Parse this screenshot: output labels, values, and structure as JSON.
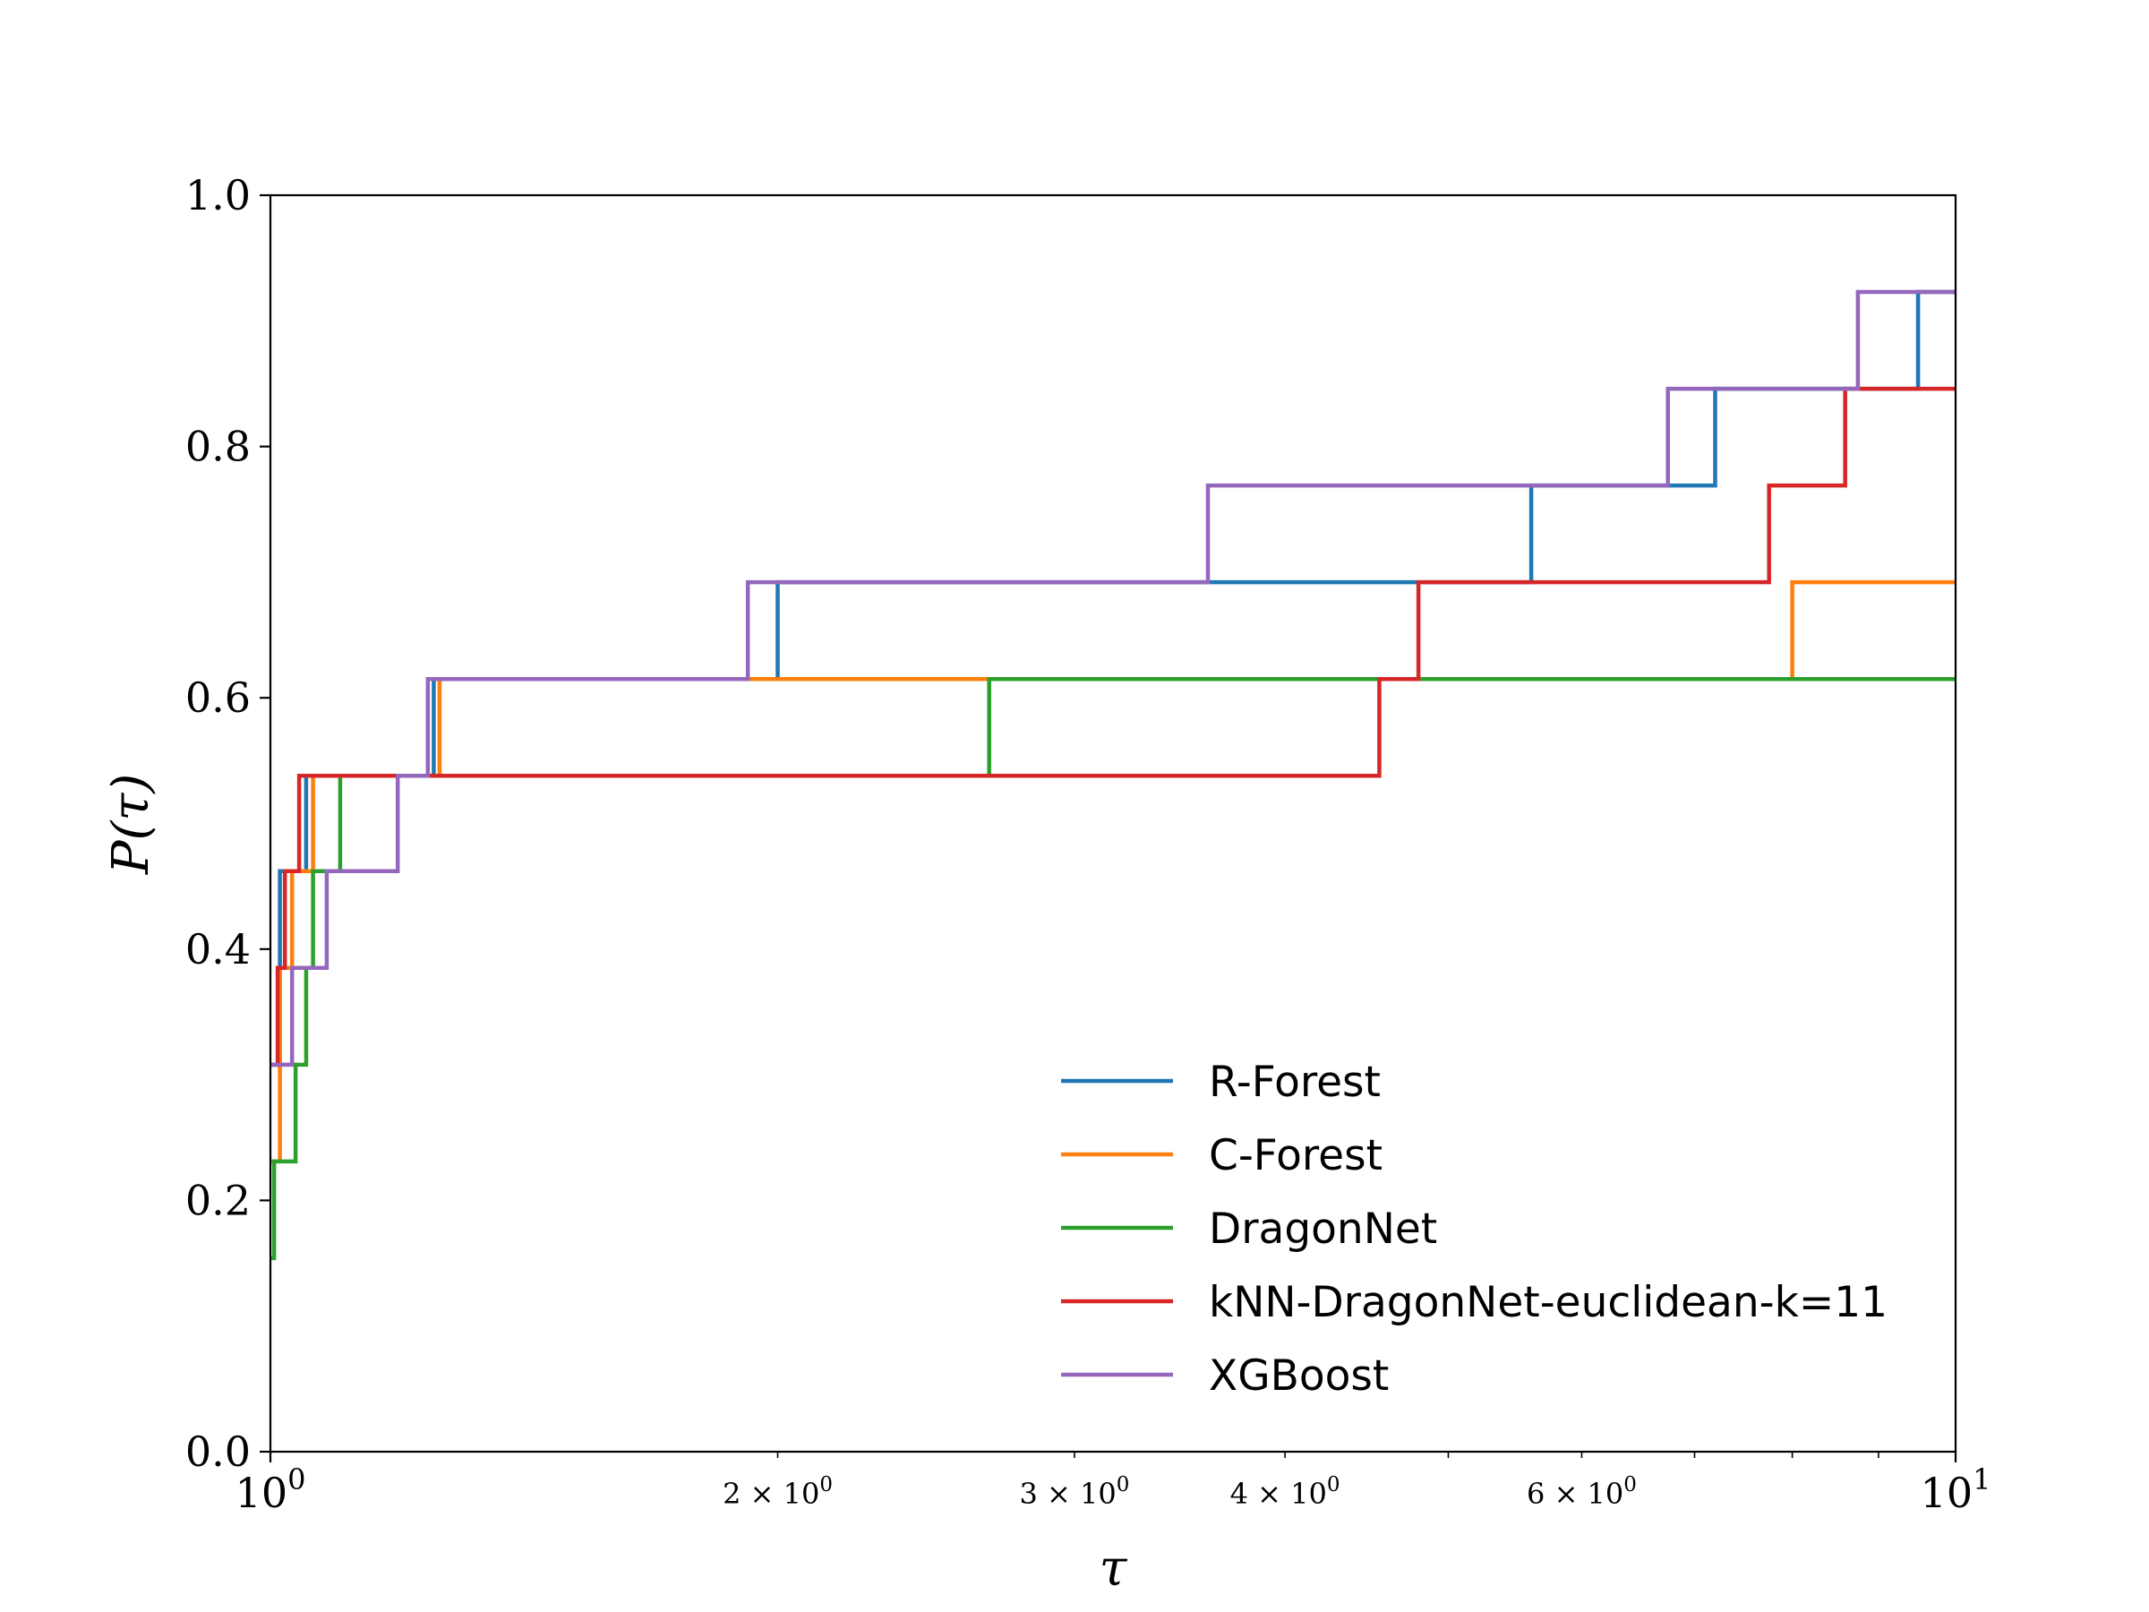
{
  "chart_data": {
    "type": "line",
    "step": "post",
    "xscale": "log",
    "xlim": [
      1,
      10
    ],
    "ylim": [
      0,
      1
    ],
    "xlabel": "τ",
    "ylabel": "P(τ)",
    "legend_position": "lower-right",
    "yticks": [
      {
        "value": 0.0,
        "label": "0.0"
      },
      {
        "value": 0.2,
        "label": "0.2"
      },
      {
        "value": 0.4,
        "label": "0.4"
      },
      {
        "value": 0.6,
        "label": "0.6"
      },
      {
        "value": 0.8,
        "label": "0.8"
      },
      {
        "value": 1.0,
        "label": "1.0"
      }
    ],
    "xticks_major": [
      {
        "value": 1,
        "base": "10",
        "exp": "0"
      },
      {
        "value": 10,
        "base": "10",
        "exp": "1"
      }
    ],
    "xticks_minor": [
      {
        "value": 2,
        "mant": "2",
        "exp": "0"
      },
      {
        "value": 3,
        "mant": "3",
        "exp": "0"
      },
      {
        "value": 4,
        "mant": "4",
        "exp": "0"
      },
      {
        "value": 5,
        "mant": "",
        "exp": ""
      },
      {
        "value": 6,
        "mant": "6",
        "exp": "0"
      },
      {
        "value": 7,
        "mant": "",
        "exp": ""
      },
      {
        "value": 8,
        "mant": "",
        "exp": ""
      },
      {
        "value": 9,
        "mant": "",
        "exp": ""
      }
    ],
    "series": [
      {
        "name": "R-Forest",
        "color": "#1f77b4",
        "points": [
          [
            1.0,
            0.308
          ],
          [
            1.013,
            0.462
          ],
          [
            1.05,
            0.538
          ],
          [
            1.25,
            0.615
          ],
          [
            1.39,
            0.615
          ],
          [
            1.39,
            0.615
          ],
          [
            2.0,
            0.692
          ],
          [
            5.6,
            0.769
          ],
          [
            7.2,
            0.846
          ],
          [
            9.5,
            0.923
          ],
          [
            10.0,
            0.923
          ]
        ]
      },
      {
        "name": "C-Forest",
        "color": "#ff7f0e",
        "points": [
          [
            1.0,
            0.231
          ],
          [
            1.013,
            0.385
          ],
          [
            1.03,
            0.462
          ],
          [
            1.06,
            0.538
          ],
          [
            1.26,
            0.615
          ],
          [
            8.0,
            0.692
          ],
          [
            10.0,
            0.692
          ]
        ]
      },
      {
        "name": "DragonNet",
        "color": "#2ca02c",
        "points": [
          [
            1.0,
            0.154
          ],
          [
            1.005,
            0.231
          ],
          [
            1.035,
            0.308
          ],
          [
            1.05,
            0.385
          ],
          [
            1.06,
            0.462
          ],
          [
            1.1,
            0.538
          ],
          [
            2.67,
            0.615
          ],
          [
            10.0,
            0.615
          ]
        ]
      },
      {
        "name": "kNN-DragonNet-euclidean-k=11",
        "color": "#d62728",
        "points": [
          [
            1.0,
            0.308
          ],
          [
            1.01,
            0.385
          ],
          [
            1.02,
            0.462
          ],
          [
            1.04,
            0.538
          ],
          [
            4.55,
            0.615
          ],
          [
            4.8,
            0.692
          ],
          [
            7.75,
            0.769
          ],
          [
            8.6,
            0.846
          ],
          [
            10.0,
            0.846
          ]
        ]
      },
      {
        "name": "XGBoost",
        "color": "#9467bd",
        "points": [
          [
            1.0,
            0.308
          ],
          [
            1.03,
            0.385
          ],
          [
            1.08,
            0.462
          ],
          [
            1.19,
            0.538
          ],
          [
            1.24,
            0.615
          ],
          [
            1.92,
            0.692
          ],
          [
            3.6,
            0.769
          ],
          [
            6.75,
            0.846
          ],
          [
            8.75,
            0.923
          ],
          [
            10.0,
            0.923
          ]
        ]
      }
    ]
  }
}
